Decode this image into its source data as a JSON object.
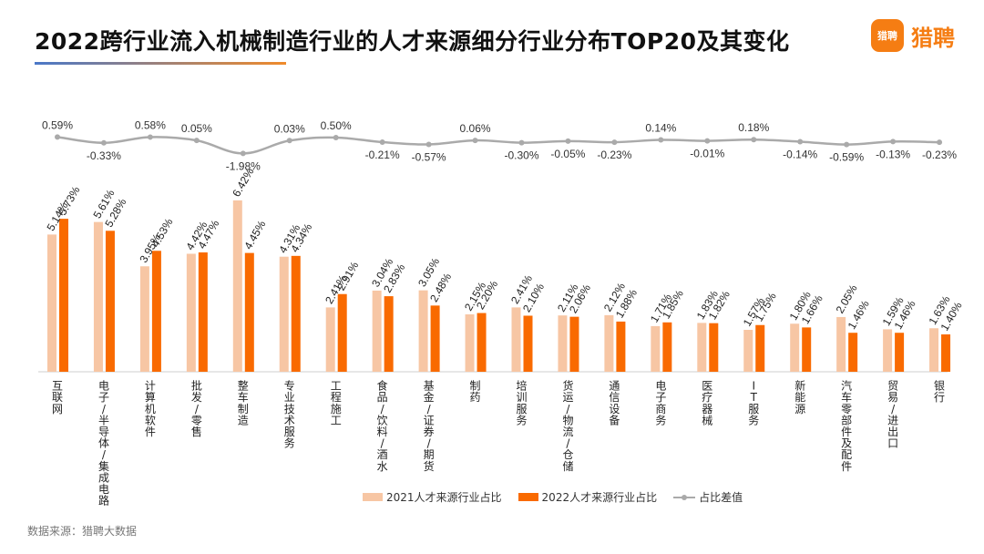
{
  "header": {
    "title": "2022跨行业流入机械制造行业的人才来源细分行业分布TOP20及其变化",
    "logo_badge": "猎聘",
    "logo_text": "猎聘"
  },
  "footer": {
    "source": "数据来源：猎聘大数据"
  },
  "colors": {
    "series_2021": "#f7c6a4",
    "series_2022": "#f96a00",
    "diff_line": "#aaaaaa"
  },
  "chart_data": {
    "type": "bar",
    "categories": [
      "互联网",
      "电子/半导体/集成电路",
      "计算机软件",
      "批发/零售",
      "整车制造",
      "专业技术服务",
      "工程施工",
      "食品/饮料/酒水",
      "基金/证券/期货",
      "制药",
      "培训服务",
      "货运/物流/仓储",
      "通信设备",
      "电子商务",
      "医疗器械",
      "IT服务",
      "新能源",
      "汽车零部件及配件",
      "贸易/进出口",
      "银行"
    ],
    "series": [
      {
        "name": "2021人才来源行业占比",
        "values": [
          5.14,
          5.61,
          3.95,
          4.42,
          6.42,
          4.31,
          2.41,
          3.04,
          3.05,
          2.15,
          2.41,
          2.11,
          2.12,
          1.71,
          1.83,
          1.57,
          1.8,
          2.05,
          1.59,
          1.63
        ],
        "labels": [
          "5.14%",
          "5.61%",
          "3.95%",
          "4.42%",
          "6.42%",
          "4.31%",
          "2.41%",
          "3.04%",
          "3.05%",
          "2.15%",
          "2.41%",
          "2.11%",
          "2.12%",
          "1.71%",
          "1.83%",
          "1.57%",
          "1.80%",
          "2.05%",
          "1.59%",
          "1.63%"
        ]
      },
      {
        "name": "2022人才来源行业占比",
        "values": [
          5.73,
          5.28,
          4.53,
          4.47,
          4.45,
          4.34,
          2.91,
          2.83,
          2.48,
          2.2,
          2.1,
          2.06,
          1.88,
          1.85,
          1.82,
          1.75,
          1.66,
          1.46,
          1.46,
          1.4
        ],
        "labels": [
          "5.73%",
          "5.28%",
          "4.53%",
          "4.47%",
          "4.45%",
          "4.34%",
          "2.91%",
          "2.83%",
          "2.48%",
          "2.20%",
          "2.10%",
          "2.06%",
          "1.88%",
          "1.85%",
          "1.82%",
          "1.75%",
          "1.66%",
          "1.46%",
          "1.46%",
          "1.40%"
        ]
      },
      {
        "name": "占比差值",
        "type": "line",
        "values": [
          0.59,
          -0.33,
          0.58,
          0.05,
          -1.98,
          0.03,
          0.5,
          -0.21,
          -0.57,
          0.06,
          -0.3,
          -0.05,
          -0.23,
          0.14,
          -0.01,
          0.18,
          -0.14,
          -0.59,
          -0.13,
          -0.23
        ],
        "labels": [
          "0.59%",
          "-0.33%",
          "0.58%",
          "0.05%",
          "-1.98%",
          "0.03%",
          "0.50%",
          "-0.21%",
          "-0.57%",
          "0.06%",
          "-0.30%",
          "-0.05%",
          "-0.23%",
          "0.14%",
          "-0.01%",
          "0.18%",
          "-0.14%",
          "-0.59%",
          "-0.13%",
          "-0.23%"
        ]
      }
    ],
    "legend_position": "bottom",
    "grid": false
  }
}
